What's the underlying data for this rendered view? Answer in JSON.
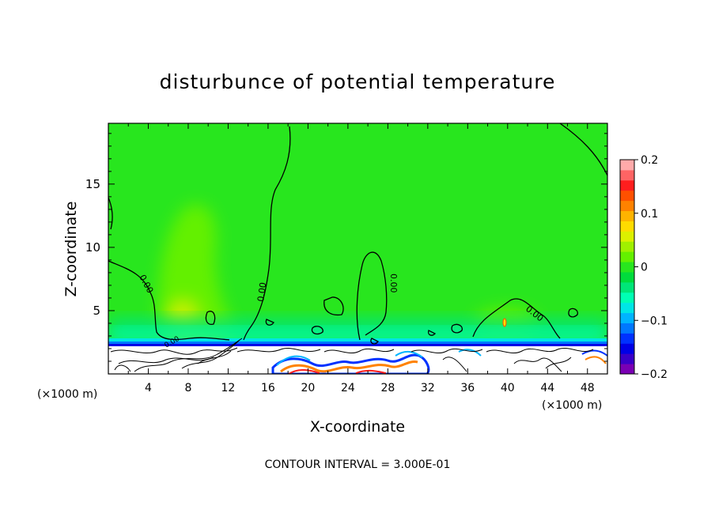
{
  "chart_data": {
    "type": "heatmap",
    "title": "disturbunce of potential temperature",
    "xlabel": "X-coordinate",
    "ylabel": "Z-coordinate",
    "x_unit": "(×1000 m)",
    "z_unit": "(×1000 m)",
    "xlim": [
      0,
      50
    ],
    "ylim": [
      0,
      19.8
    ],
    "x_ticks": [
      4,
      8,
      12,
      16,
      20,
      24,
      28,
      32,
      36,
      40,
      44,
      48
    ],
    "x_tick_labels": [
      "4",
      "8",
      "12",
      "16",
      "20",
      "24",
      "28",
      "32",
      "36",
      "40",
      "44",
      "48"
    ],
    "y_ticks": [
      5,
      10,
      15
    ],
    "y_tick_labels": [
      "5",
      "10",
      "15"
    ],
    "colorbar": {
      "min": -0.2,
      "max": 0.2,
      "ticks": [
        0.2,
        0.1,
        0,
        -0.1,
        -0.2
      ],
      "tick_labels": [
        "0.2",
        "0.1",
        "0",
        "−0.1",
        "−0.2"
      ],
      "colors": [
        "#7a00b4",
        "#3a00c8",
        "#0000e6",
        "#0032ff",
        "#0078ff",
        "#00b4ff",
        "#00e6e6",
        "#00ffb4",
        "#00e678",
        "#00dc3c",
        "#28e61e",
        "#64f000",
        "#a0f000",
        "#dcf000",
        "#ffdc00",
        "#ffb400",
        "#ff8200",
        "#ff5000",
        "#ff1e1e",
        "#ff6464",
        "#ffaaaa"
      ]
    },
    "contour_labels": [
      "0.00",
      "0.00",
      "0.00",
      "0.00",
      "0.00"
    ],
    "contour_interval_text": "CONTOUR INTERVAL = 3.000E-01"
  }
}
